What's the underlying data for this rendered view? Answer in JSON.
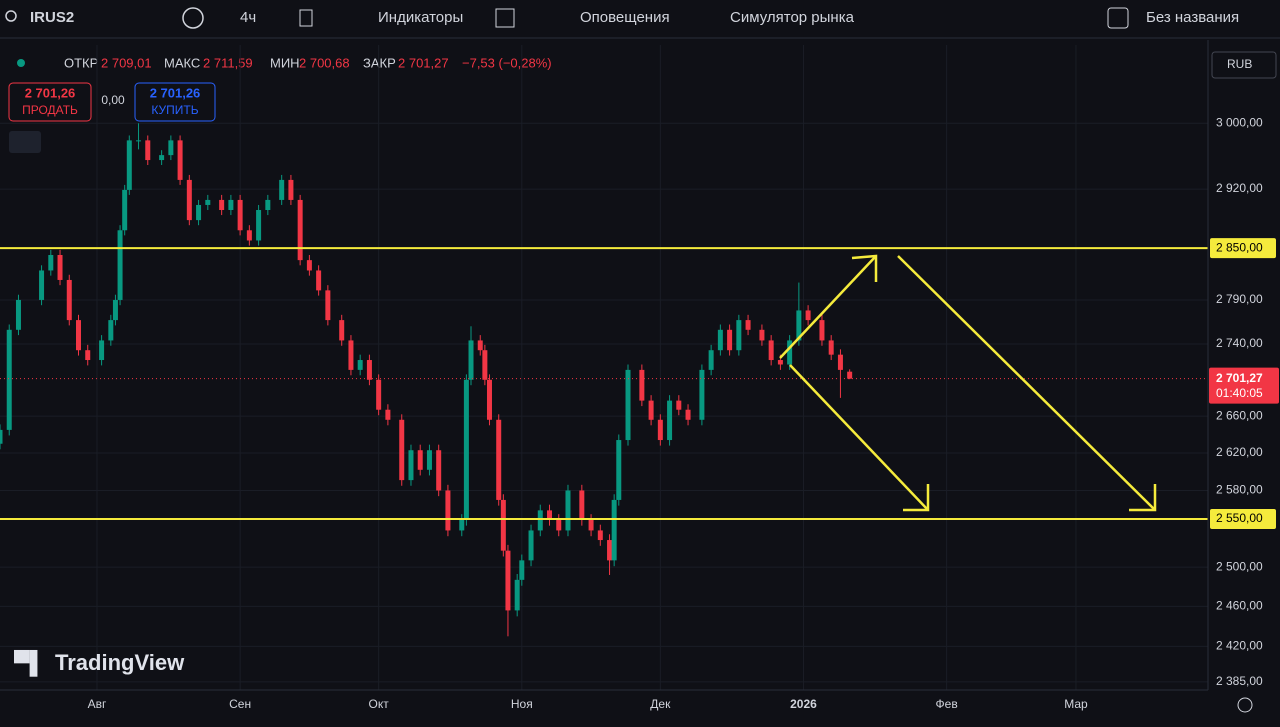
{
  "toolbar": {
    "symbol": "IRUS2",
    "interval": "4ч",
    "indicators": "Индикаторы",
    "alerts": "Оповещения",
    "replay": "Симулятор рынка",
    "layout_name": "Без названия"
  },
  "legend": {
    "open_label": "ОТКР",
    "open": "2 709,01",
    "high_label": "МАКС",
    "high": "2 711,59",
    "low_label": "МИН",
    "low": "2 700,68",
    "close_label": "ЗАКР",
    "close": "2 701,27",
    "change": "−7,53 (−0,28%)"
  },
  "trade": {
    "sell_price": "2 701,26",
    "sell": "ПРОДАТЬ",
    "spread": "0,00",
    "buy_price": "2 701,26",
    "buy": "КУПИТЬ"
  },
  "currency": "RUB",
  "watermark": "TradingView",
  "chart_data": {
    "type": "candlestick",
    "up_color": "#089981",
    "down_color": "#f23645",
    "log_scale": true,
    "xlim": [
      0,
      261.6
    ],
    "ylim": [
      2377,
      3098
    ],
    "xticks": [
      {
        "value": 21,
        "label": "Авг"
      },
      {
        "value": 52,
        "label": "Сен"
      },
      {
        "value": 82,
        "label": "Окт"
      },
      {
        "value": 113,
        "label": "Ноя"
      },
      {
        "value": 143,
        "label": "Дек"
      },
      {
        "value": 174,
        "label": "2026"
      },
      {
        "value": 205,
        "label": "Фев"
      },
      {
        "value": 233,
        "label": "Мар"
      }
    ],
    "yticks": [
      {
        "value": 3000,
        "label": "3 000,00"
      },
      {
        "value": 2920,
        "label": "2 920,00"
      },
      {
        "value": 2790,
        "label": "2 790,00"
      },
      {
        "value": 2740,
        "label": "2 740,00"
      },
      {
        "value": 2660,
        "label": "2 660,00"
      },
      {
        "value": 2620,
        "label": "2 620,00"
      },
      {
        "value": 2580,
        "label": "2 580,00"
      },
      {
        "value": 2500,
        "label": "2 500,00"
      },
      {
        "value": 2460,
        "label": "2 460,00"
      },
      {
        "value": 2420,
        "label": "2 420,00"
      },
      {
        "value": 2385,
        "label": "2 385,00"
      }
    ],
    "hlines": [
      {
        "value": 2850,
        "label": "2 850,00"
      },
      {
        "value": 2550,
        "label": "2 550,00"
      }
    ],
    "last_price": {
      "value": 2701.27,
      "label": "2 701,27",
      "countdown": "01:40:05"
    },
    "candles": [
      [
        0,
        2630,
        2651,
        2624,
        2645
      ],
      [
        2,
        2645,
        2762,
        2639,
        2756
      ],
      [
        4,
        2756,
        2796,
        2750,
        2790
      ],
      [
        9,
        2790,
        2830,
        2784,
        2824
      ],
      [
        11,
        2824,
        2848,
        2818,
        2842
      ],
      [
        13,
        2842,
        2848,
        2807,
        2813
      ],
      [
        15,
        2813,
        2819,
        2761,
        2767
      ],
      [
        17,
        2767,
        2773,
        2727,
        2733
      ],
      [
        19,
        2733,
        2739,
        2716,
        2722
      ],
      [
        22,
        2722,
        2750,
        2716,
        2744
      ],
      [
        24,
        2744,
        2773,
        2738,
        2767
      ],
      [
        25,
        2767,
        2796,
        2761,
        2790
      ],
      [
        26,
        2790,
        2877,
        2784,
        2871
      ],
      [
        27,
        2871,
        2925,
        2865,
        2919
      ],
      [
        28,
        2919,
        2985,
        2913,
        2979
      ],
      [
        30,
        2979,
        3000,
        2968,
        2979
      ],
      [
        32,
        2979,
        2985,
        2949,
        2955
      ],
      [
        35,
        2955,
        2967,
        2949,
        2961
      ],
      [
        37,
        2961,
        2985,
        2955,
        2979
      ],
      [
        39,
        2979,
        2985,
        2925,
        2931
      ],
      [
        41,
        2931,
        2937,
        2877,
        2883
      ],
      [
        43,
        2883,
        2907,
        2877,
        2901
      ],
      [
        45,
        2901,
        2913,
        2895,
        2907
      ],
      [
        48,
        2907,
        2913,
        2889,
        2895
      ],
      [
        50,
        2895,
        2913,
        2889,
        2907
      ],
      [
        52,
        2907,
        2913,
        2865,
        2871
      ],
      [
        54,
        2871,
        2877,
        2853,
        2859
      ],
      [
        56,
        2859,
        2901,
        2853,
        2895
      ],
      [
        58,
        2895,
        2913,
        2889,
        2907
      ],
      [
        61,
        2907,
        2937,
        2901,
        2931
      ],
      [
        63,
        2931,
        2937,
        2901,
        2907
      ],
      [
        65,
        2907,
        2913,
        2830,
        2836
      ],
      [
        67,
        2836,
        2842,
        2818,
        2824
      ],
      [
        69,
        2824,
        2830,
        2795,
        2801
      ],
      [
        71,
        2801,
        2807,
        2761,
        2767
      ],
      [
        74,
        2767,
        2773,
        2738,
        2744
      ],
      [
        76,
        2744,
        2750,
        2705,
        2711
      ],
      [
        78,
        2711,
        2728,
        2705,
        2722
      ],
      [
        80,
        2722,
        2728,
        2694,
        2700
      ],
      [
        82,
        2700,
        2706,
        2661,
        2667
      ],
      [
        84,
        2667,
        2673,
        2650,
        2656
      ],
      [
        87,
        2656,
        2662,
        2585,
        2591
      ],
      [
        89,
        2591,
        2629,
        2585,
        2623
      ],
      [
        91,
        2623,
        2629,
        2596,
        2602
      ],
      [
        93,
        2602,
        2629,
        2596,
        2623
      ],
      [
        95,
        2623,
        2629,
        2574,
        2580
      ],
      [
        97,
        2580,
        2586,
        2532,
        2538
      ],
      [
        100,
        2538,
        2555,
        2532,
        2549
      ],
      [
        101,
        2549,
        2706,
        2543,
        2700
      ],
      [
        102,
        2700,
        2760,
        2694,
        2744
      ],
      [
        104,
        2744,
        2750,
        2727,
        2733
      ],
      [
        105,
        2733,
        2739,
        2694,
        2700
      ],
      [
        106,
        2700,
        2706,
        2650,
        2656
      ],
      [
        108,
        2656,
        2662,
        2564,
        2570
      ],
      [
        109,
        2570,
        2576,
        2511,
        2517
      ],
      [
        110,
        2517,
        2523,
        2430,
        2456
      ],
      [
        112,
        2456,
        2493,
        2450,
        2487
      ],
      [
        113,
        2487,
        2513,
        2481,
        2507
      ],
      [
        115,
        2507,
        2544,
        2501,
        2538
      ],
      [
        117,
        2538,
        2565,
        2532,
        2559
      ],
      [
        119,
        2559,
        2565,
        2543,
        2549
      ],
      [
        121,
        2549,
        2555,
        2532,
        2538
      ],
      [
        123,
        2538,
        2586,
        2532,
        2580
      ],
      [
        126,
        2580,
        2586,
        2543,
        2549
      ],
      [
        128,
        2549,
        2555,
        2532,
        2538
      ],
      [
        130,
        2538,
        2544,
        2522,
        2528
      ],
      [
        132,
        2528,
        2534,
        2492,
        2507
      ],
      [
        133,
        2507,
        2576,
        2501,
        2570
      ],
      [
        134,
        2570,
        2640,
        2564,
        2634
      ],
      [
        136,
        2634,
        2717,
        2628,
        2711
      ],
      [
        139,
        2711,
        2717,
        2671,
        2677
      ],
      [
        141,
        2677,
        2683,
        2650,
        2656
      ],
      [
        143,
        2656,
        2662,
        2628,
        2634
      ],
      [
        145,
        2634,
        2683,
        2628,
        2677
      ],
      [
        147,
        2677,
        2683,
        2661,
        2667
      ],
      [
        149,
        2667,
        2673,
        2650,
        2656
      ],
      [
        152,
        2656,
        2717,
        2650,
        2711
      ],
      [
        154,
        2711,
        2739,
        2705,
        2733
      ],
      [
        156,
        2733,
        2762,
        2727,
        2756
      ],
      [
        158,
        2756,
        2762,
        2727,
        2733
      ],
      [
        160,
        2733,
        2773,
        2727,
        2767
      ],
      [
        162,
        2767,
        2773,
        2750,
        2756
      ],
      [
        165,
        2756,
        2762,
        2738,
        2744
      ],
      [
        167,
        2744,
        2750,
        2716,
        2722
      ],
      [
        169,
        2722,
        2728,
        2711,
        2717
      ],
      [
        171,
        2717,
        2750,
        2711,
        2744
      ],
      [
        173,
        2744,
        2810,
        2738,
        2778
      ],
      [
        175,
        2778,
        2784,
        2761,
        2767
      ],
      [
        178,
        2767,
        2773,
        2738,
        2744
      ],
      [
        180,
        2744,
        2750,
        2722,
        2728
      ],
      [
        182,
        2728,
        2734,
        2680,
        2711
      ],
      [
        184,
        2709.01,
        2711.59,
        2700.68,
        2701.27
      ]
    ]
  }
}
